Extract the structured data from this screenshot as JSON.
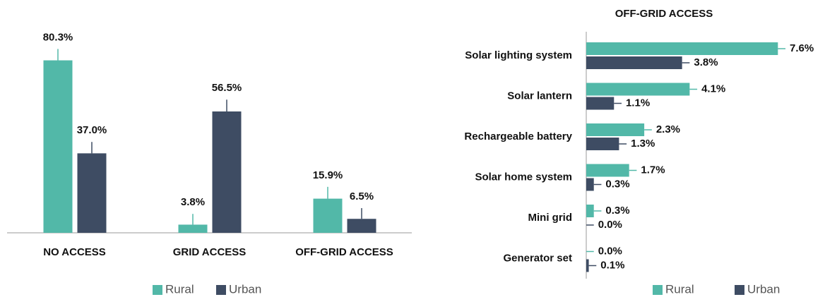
{
  "chart_data": [
    {
      "type": "bar",
      "categories": [
        "NO ACCESS",
        "GRID ACCESS",
        "OFF-GRID ACCESS"
      ],
      "series": [
        {
          "name": "Rural",
          "color": "#52b8a8",
          "values": [
            80.3,
            3.8,
            15.9
          ],
          "value_labels": [
            "80.3%",
            "3.8%",
            "15.9%"
          ],
          "errors": [
            5.3,
            5,
            5.5
          ]
        },
        {
          "name": "Urban",
          "color": "#3e4c63",
          "values": [
            37.0,
            56.5,
            6.5
          ],
          "value_labels": [
            "37.0%",
            "56.5%",
            "6.5%"
          ],
          "errors": [
            5.3,
            5.5,
            5
          ]
        }
      ],
      "ylim": [
        0,
        90
      ],
      "legend": "bottom"
    },
    {
      "type": "hbar",
      "title": "OFF-GRID ACCESS",
      "categories": [
        "Solar lighting system",
        "Solar lantern",
        "Rechargeable battery",
        "Solar home system",
        "Mini grid",
        "Generator set"
      ],
      "series": [
        {
          "name": "Rural",
          "color": "#52b8a8",
          "values": [
            7.6,
            4.1,
            2.3,
            1.7,
            0.3,
            0.0
          ],
          "value_labels": [
            "7.6%",
            "4.1%",
            "2.3%",
            "1.7%",
            "0.3%",
            "0.0%"
          ],
          "errors": [
            0.3,
            0.3,
            0.3,
            0.3,
            0.3,
            0.3
          ]
        },
        {
          "name": "Urban",
          "color": "#3e4c63",
          "values": [
            3.8,
            1.1,
            1.3,
            0.3,
            0.0,
            0.1
          ],
          "value_labels": [
            "3.8%",
            "1.1%",
            "1.3%",
            "0.3%",
            "0.0%",
            "0.1%"
          ],
          "errors": [
            0.3,
            0.3,
            0.3,
            0.3,
            0.3,
            0.3
          ]
        }
      ],
      "xlim": [
        0,
        8.5
      ],
      "legend": "bottom-right"
    }
  ]
}
